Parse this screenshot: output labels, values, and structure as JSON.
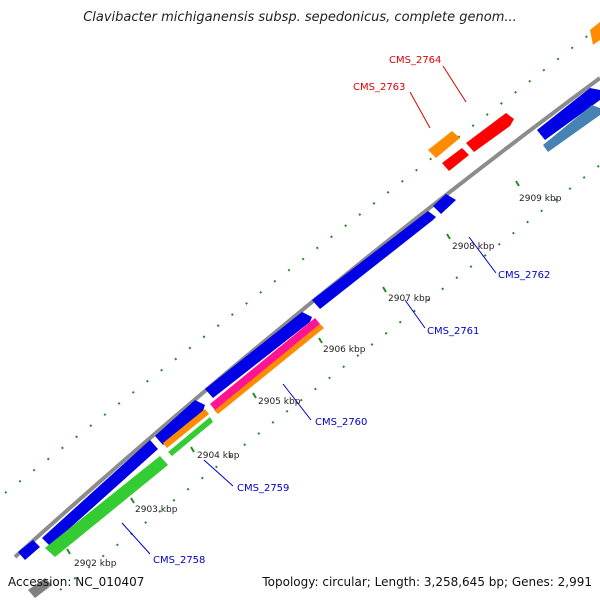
{
  "title": "Clavibacter michiganensis subsp. sepedonicus, complete genom...",
  "footer": {
    "accession": "Accession: NC_010407",
    "summary": "Topology: circular; Length: 3,258,645 bp; Genes: 2,991"
  },
  "colors": {
    "backbone": "#8c8c8c",
    "cds": "#0000e6",
    "rna": "#ff0000",
    "orange": "#ff8c00",
    "magenta": "#ff1493",
    "green": "#33cc33",
    "steelblue": "#4682b4",
    "tick": "#228b22",
    "grey_feature": "#808080",
    "label_blue": "#0000cc",
    "label_red": "#e00000"
  },
  "ticks": [
    {
      "label": "2902 kbp"
    },
    {
      "label": "2903 kbp"
    },
    {
      "label": "2904 kbp"
    },
    {
      "label": "2905 kbp"
    },
    {
      "label": "2906 kbp"
    },
    {
      "label": "2907 kbp"
    },
    {
      "label": "2908 kbp"
    },
    {
      "label": "2909 kbp"
    }
  ],
  "gene_labels": [
    {
      "text": "CMS_2758",
      "color": "label_blue"
    },
    {
      "text": "CMS_2759",
      "color": "label_blue"
    },
    {
      "text": "CMS_2760",
      "color": "label_blue"
    },
    {
      "text": "CMS_2761",
      "color": "label_blue"
    },
    {
      "text": "CMS_2762",
      "color": "label_blue"
    },
    {
      "text": "CMS_2763",
      "color": "label_red"
    },
    {
      "text": "CMS_2764",
      "color": "label_red"
    }
  ]
}
